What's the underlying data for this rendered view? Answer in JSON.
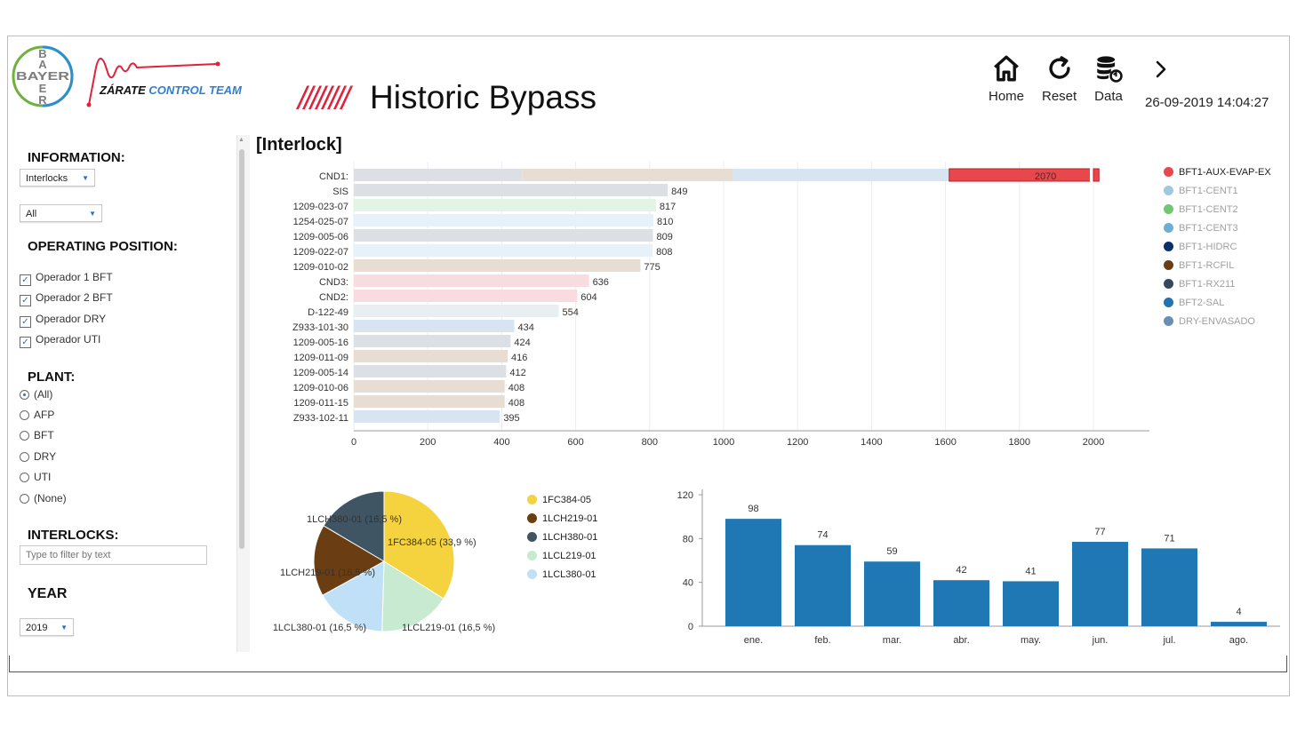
{
  "header": {
    "brand": {
      "bayer_letters": [
        "B",
        "A",
        "Y",
        "E",
        "R"
      ],
      "team_word1": "ZÁRATE",
      "team_word2": "CONTROL TEAM"
    },
    "title_prefix": "////////",
    "title": "Historic Bypass",
    "nav": [
      {
        "label": "Home",
        "icon": "home-icon"
      },
      {
        "label": "Reset",
        "icon": "refresh-icon"
      },
      {
        "label": "Data",
        "icon": "database-sync-icon"
      }
    ],
    "next_icon": "chevron-right-icon",
    "datetime": "26-09-2019 14:04:27"
  },
  "sidebar": {
    "information_label": "INFORMATION:",
    "information_select": "Interlocks",
    "scope_select": "All",
    "operating_label": "OPERATING POSITION:",
    "operators": [
      {
        "label": "Operador 1 BFT",
        "checked": true
      },
      {
        "label": "Operador 2 BFT",
        "checked": true
      },
      {
        "label": "Operador DRY",
        "checked": true
      },
      {
        "label": "Operador UTI",
        "checked": true
      }
    ],
    "plant_label": "PLANT:",
    "plants": [
      {
        "label": "(All)",
        "selected": true
      },
      {
        "label": "AFP",
        "selected": false
      },
      {
        "label": "BFT",
        "selected": false
      },
      {
        "label": "DRY",
        "selected": false
      },
      {
        "label": "UTI",
        "selected": false
      },
      {
        "label": "(None)",
        "selected": false
      }
    ],
    "interlocks_label": "INTERLOCKS:",
    "filter_placeholder": "Type to filter by text",
    "year_label": "YEAR",
    "year_select": "2019"
  },
  "main": {
    "section_title": "[Interlock]"
  },
  "colors": {
    "accent_red": "#e0223a",
    "bar_blue": "#1f77b4"
  },
  "chart_data": [
    {
      "type": "bar",
      "orientation": "horizontal",
      "xlim": [
        0,
        2000
      ],
      "xticks": [
        0,
        200,
        400,
        600,
        800,
        1000,
        1200,
        1400,
        1600,
        1800,
        2000
      ],
      "grid": true,
      "categories": [
        "CND1:",
        "SIS",
        "1209-023-07",
        "1254-025-07",
        "1209-005-06",
        "1209-022-07",
        "1209-010-02",
        "CND3:",
        "CND2:",
        "D-122-49",
        "Z933-101-30",
        "1209-005-16",
        "1209-011-09",
        "1209-005-14",
        "1209-010-06",
        "1209-011-15",
        "Z933-102-11"
      ],
      "values": [
        2070,
        849,
        817,
        810,
        809,
        808,
        775,
        636,
        604,
        554,
        434,
        424,
        416,
        412,
        408,
        408,
        395
      ],
      "bar_colors": [
        "#dcdfe3",
        "#dcdfe3",
        "#e3f3e6",
        "#e6f1fa",
        "#dcdfe3",
        "#e6f1fa",
        "#e7ddd3",
        "#f9dcdf",
        "#f9dcdf",
        "#e9eef2",
        "#d6e5f1",
        "#dcdfe3",
        "#e7ddd3",
        "#dcdfe3",
        "#e7ddd3",
        "#e7ddd3",
        "#d6e5f1"
      ],
      "stacked_first_row": [
        {
          "value": 455,
          "color": "#dcdfe3"
        },
        {
          "value": 570,
          "color": "#e7ddd3"
        },
        {
          "value": 585,
          "color": "#d6e5f1"
        },
        {
          "value": 380,
          "color": "#e8474c"
        },
        {
          "value": 10,
          "color": "#ffffff"
        },
        {
          "value": 15,
          "color": "#e8474c"
        }
      ],
      "legend": [
        {
          "name": "BFT1-AUX-EVAP-EX",
          "color": "#e8474c",
          "active": true
        },
        {
          "name": "BFT1-CENT1",
          "color": "#9ecae1",
          "active": false
        },
        {
          "name": "BFT1-CENT2",
          "color": "#74c476",
          "active": false
        },
        {
          "name": "BFT1-CENT3",
          "color": "#6baed6",
          "active": false
        },
        {
          "name": "BFT1-HIDRC",
          "color": "#08306b",
          "active": false
        },
        {
          "name": "BFT1-RCFIL",
          "color": "#6b3d12",
          "active": false
        },
        {
          "name": "BFT1-RX211",
          "color": "#34495e",
          "active": false
        },
        {
          "name": "BFT2-SAL",
          "color": "#2171b5",
          "active": false
        },
        {
          "name": "DRY-ENVASADO",
          "color": "#6a8db5",
          "active": false
        }
      ]
    },
    {
      "type": "pie",
      "slices": [
        {
          "name": "1FC384-05",
          "value": 33.9,
          "label": "1FC384-05 (33,9 %)",
          "color": "#f5d33e"
        },
        {
          "name": "1LCL219-01",
          "value": 16.5,
          "label": "1LCL219-01 (16,5 %)",
          "color": "#c7ead0"
        },
        {
          "name": "1LCL380-01",
          "value": 16.5,
          "label": "1LCL380-01 (16,5 %)",
          "color": "#bfe0f7"
        },
        {
          "name": "1LCH219-01",
          "value": 16.5,
          "label": "1LCH219-01 (16,5 %)",
          "color": "#6b3d12"
        },
        {
          "name": "1LCH380-01",
          "value": 16.5,
          "label": "1LCH380-01 (16,5 %)",
          "color": "#3f5564"
        }
      ],
      "legend": [
        {
          "name": "1FC384-05",
          "color": "#f5d33e"
        },
        {
          "name": "1LCH219-01",
          "color": "#6b3d12"
        },
        {
          "name": "1LCH380-01",
          "color": "#3f5564"
        },
        {
          "name": "1LCL219-01",
          "color": "#c7ead0"
        },
        {
          "name": "1LCL380-01",
          "color": "#bfe0f7"
        }
      ]
    },
    {
      "type": "bar",
      "orientation": "vertical",
      "categories": [
        "ene.",
        "feb.",
        "mar.",
        "abr.",
        "may.",
        "jun.",
        "jul.",
        "ago."
      ],
      "values": [
        98,
        74,
        59,
        42,
        41,
        77,
        71,
        4
      ],
      "ylim": [
        0,
        120
      ],
      "yticks": [
        0,
        40,
        80,
        120
      ],
      "color": "#1f77b4"
    }
  ]
}
